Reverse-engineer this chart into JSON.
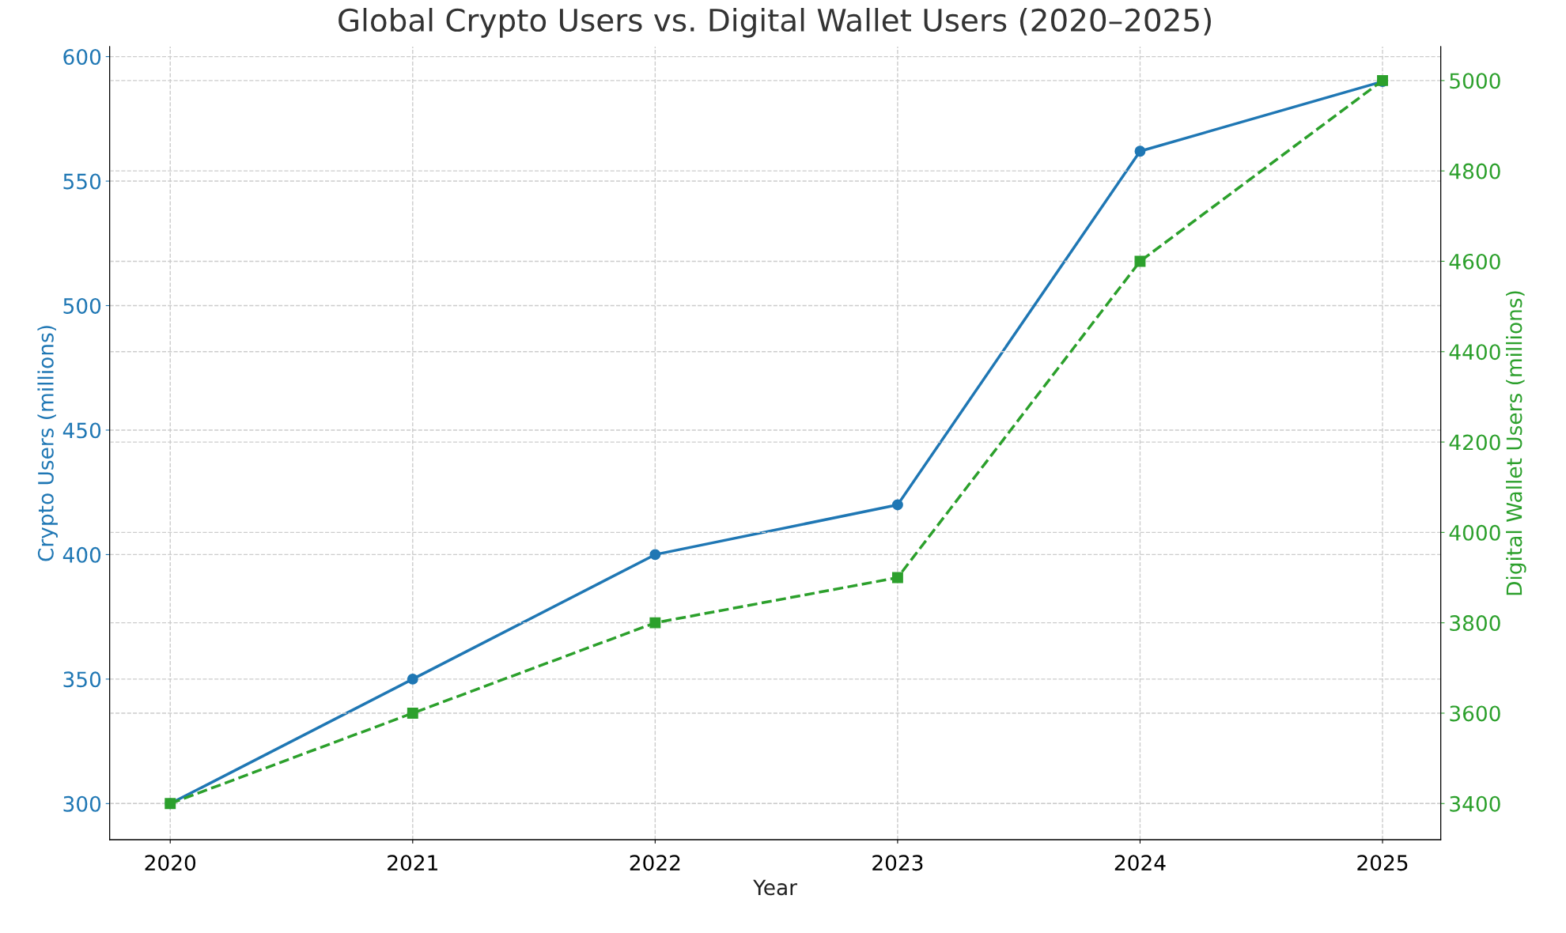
{
  "chart_data": {
    "type": "line",
    "title": "Global Crypto Users vs. Digital Wallet Users (2020–2025)",
    "xlabel": "Year",
    "ylabel": "Crypto Users (millions)",
    "y2label": "Digital Wallet Users (millions)",
    "x": [
      2020,
      2021,
      2022,
      2023,
      2024,
      2025
    ],
    "series": [
      {
        "color": "#1f77b4",
        "values": [
          300,
          350,
          400,
          420,
          562,
          590
        ],
        "marker": "circle",
        "line_style": "solid"
      },
      {
        "color": "#2ca02c",
        "values": [
          3400,
          3600,
          3800,
          3900,
          4600,
          5000
        ],
        "marker": "square",
        "line_style": "dashed",
        "axis": "y2"
      }
    ],
    "xlim": [
      2019.75,
      2025.24
    ],
    "xticks": [
      2020,
      2021,
      2022,
      2023,
      2024,
      2025
    ],
    "ylim": [
      285.5,
      604
    ],
    "yticks": [
      300,
      350,
      400,
      450,
      500,
      550,
      600
    ],
    "y2lim": [
      3320,
      5075
    ],
    "y2ticks": [
      3400,
      3600,
      3800,
      4000,
      4200,
      4400,
      4600,
      4800,
      5000
    ],
    "grid": true
  }
}
